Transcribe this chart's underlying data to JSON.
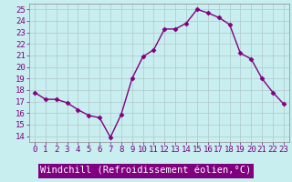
{
  "x": [
    0,
    1,
    2,
    3,
    4,
    5,
    6,
    7,
    8,
    9,
    10,
    11,
    12,
    13,
    14,
    15,
    16,
    17,
    18,
    19,
    20,
    21,
    22,
    23
  ],
  "y": [
    17.8,
    17.2,
    17.2,
    16.9,
    16.3,
    15.8,
    15.6,
    13.9,
    15.9,
    19.0,
    20.9,
    21.5,
    23.3,
    23.3,
    23.8,
    25.0,
    24.7,
    24.3,
    23.7,
    21.2,
    20.7,
    19.0,
    17.8,
    16.8
  ],
  "line_color": "#800080",
  "marker": "D",
  "marker_size": 2.5,
  "linewidth": 1.0,
  "xlabel": "Windchill (Refroidissement éolien,°C)",
  "xlim": [
    -0.5,
    23.5
  ],
  "ylim": [
    13.5,
    25.5
  ],
  "yticks": [
    14,
    15,
    16,
    17,
    18,
    19,
    20,
    21,
    22,
    23,
    24,
    25
  ],
  "xticks": [
    0,
    1,
    2,
    3,
    4,
    5,
    6,
    7,
    8,
    9,
    10,
    11,
    12,
    13,
    14,
    15,
    16,
    17,
    18,
    19,
    20,
    21,
    22,
    23
  ],
  "bg_color": "#c8eef0",
  "grid_color": "#b0c8c8",
  "tick_fontsize": 6.5,
  "xlabel_fontsize": 7.5,
  "tick_color": "#800080",
  "label_bg": "#800080",
  "label_fg": "#ffffff"
}
